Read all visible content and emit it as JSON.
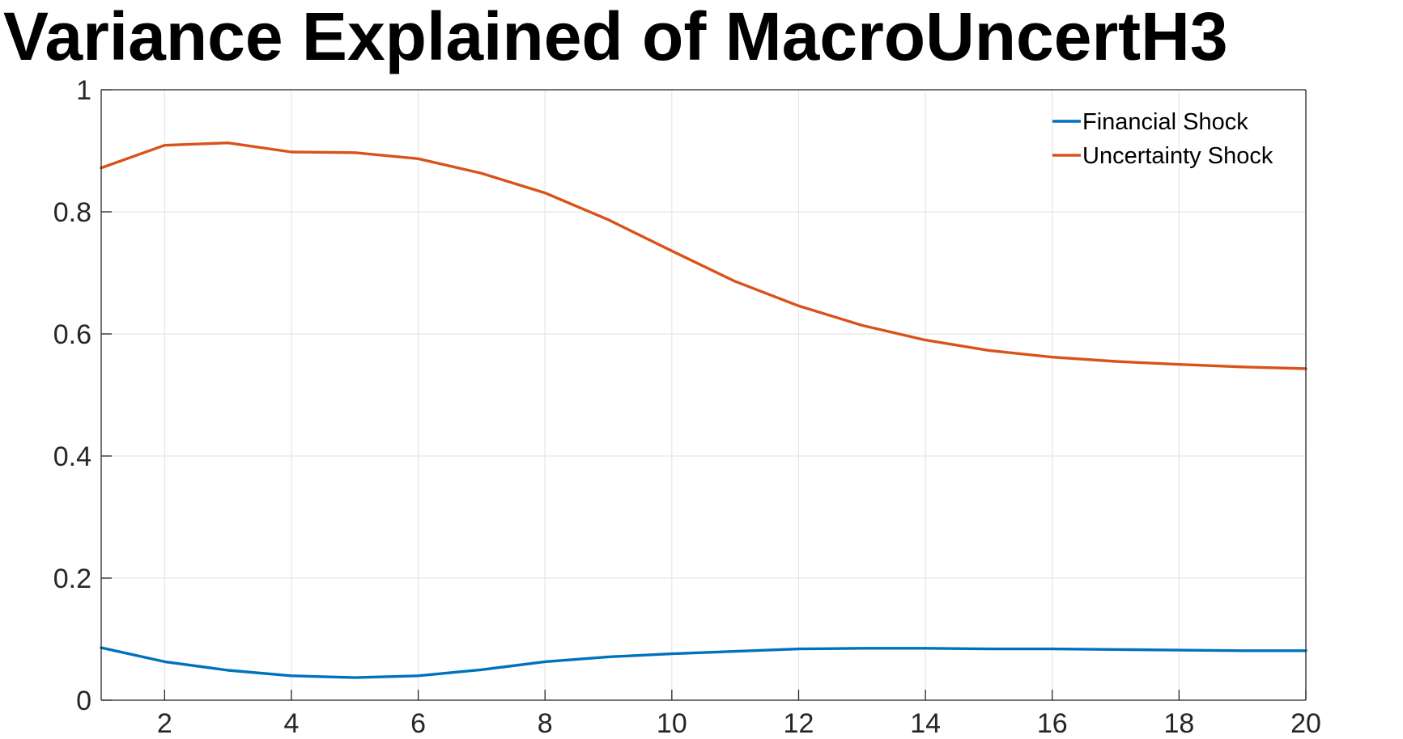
{
  "chart_data": {
    "type": "line",
    "title": "Variance Explained of MacroUncertH3",
    "xlabel": "",
    "ylabel": "",
    "xlim": [
      1,
      20
    ],
    "ylim": [
      0,
      1
    ],
    "grid": true,
    "legend_position": "top-right",
    "x": [
      1,
      2,
      3,
      4,
      5,
      6,
      7,
      8,
      9,
      10,
      11,
      12,
      13,
      14,
      15,
      16,
      17,
      18,
      19,
      20
    ],
    "xticks": [
      2,
      4,
      6,
      8,
      10,
      12,
      14,
      16,
      18,
      20
    ],
    "yticks": [
      0,
      0.2,
      0.4,
      0.6,
      0.8,
      1
    ],
    "xtick_labels": [
      "2",
      "4",
      "6",
      "8",
      "10",
      "12",
      "14",
      "16",
      "18",
      "20"
    ],
    "ytick_labels": [
      "0",
      "0.2",
      "0.4",
      "0.6",
      "0.8",
      "1"
    ],
    "series": [
      {
        "name": "Financial Shock",
        "color": "#0072BD",
        "values": [
          0.086,
          0.063,
          0.049,
          0.04,
          0.037,
          0.04,
          0.05,
          0.063,
          0.071,
          0.076,
          0.08,
          0.084,
          0.085,
          0.085,
          0.084,
          0.084,
          0.083,
          0.082,
          0.081,
          0.081
        ]
      },
      {
        "name": "Uncertainty Shock",
        "color": "#D95319",
        "values": [
          0.872,
          0.909,
          0.913,
          0.898,
          0.897,
          0.887,
          0.863,
          0.831,
          0.787,
          0.736,
          0.686,
          0.646,
          0.614,
          0.59,
          0.573,
          0.562,
          0.555,
          0.55,
          0.546,
          0.543
        ]
      }
    ]
  }
}
